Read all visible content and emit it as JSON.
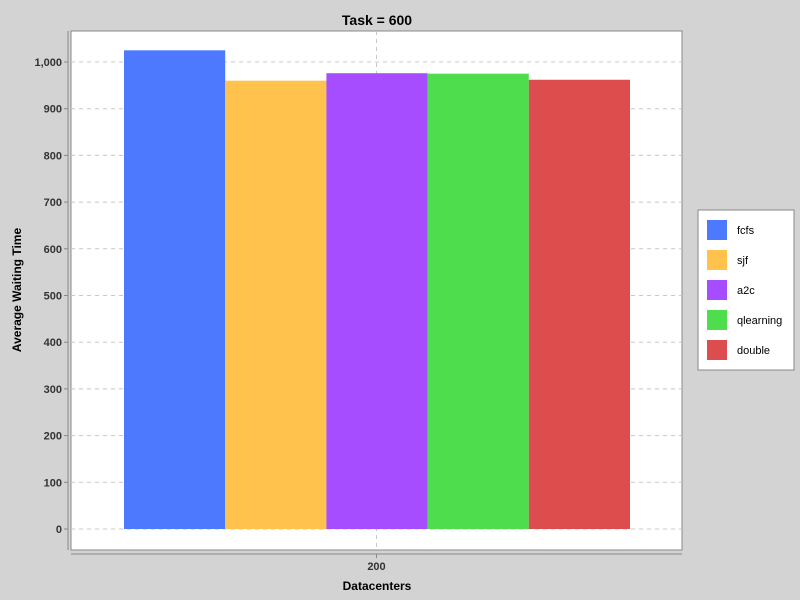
{
  "chart_data": {
    "type": "bar",
    "title": "Task = 600",
    "xlabel": "Datacenters",
    "ylabel": "Average Waiting Time",
    "categories": [
      "200"
    ],
    "series": [
      {
        "name": "fcfs",
        "values": [
          1025
        ],
        "color": "#4d79ff"
      },
      {
        "name": "sjf",
        "values": [
          960
        ],
        "color": "#ffc34d"
      },
      {
        "name": "a2c",
        "values": [
          976
        ],
        "color": "#a64dff"
      },
      {
        "name": "qlearning",
        "values": [
          975
        ],
        "color": "#4ddd4d"
      },
      {
        "name": "double",
        "values": [
          962
        ],
        "color": "#dd4d4d"
      }
    ],
    "yticks": [
      0,
      100,
      200,
      300,
      400,
      500,
      600,
      700,
      800,
      900,
      1000
    ],
    "ytick_labels": [
      "0",
      "100",
      "200",
      "300",
      "400",
      "500",
      "600",
      "700",
      "800",
      "900",
      "1,000"
    ],
    "ylim": [
      0,
      1080
    ],
    "grid": true,
    "legend_position": "right"
  }
}
